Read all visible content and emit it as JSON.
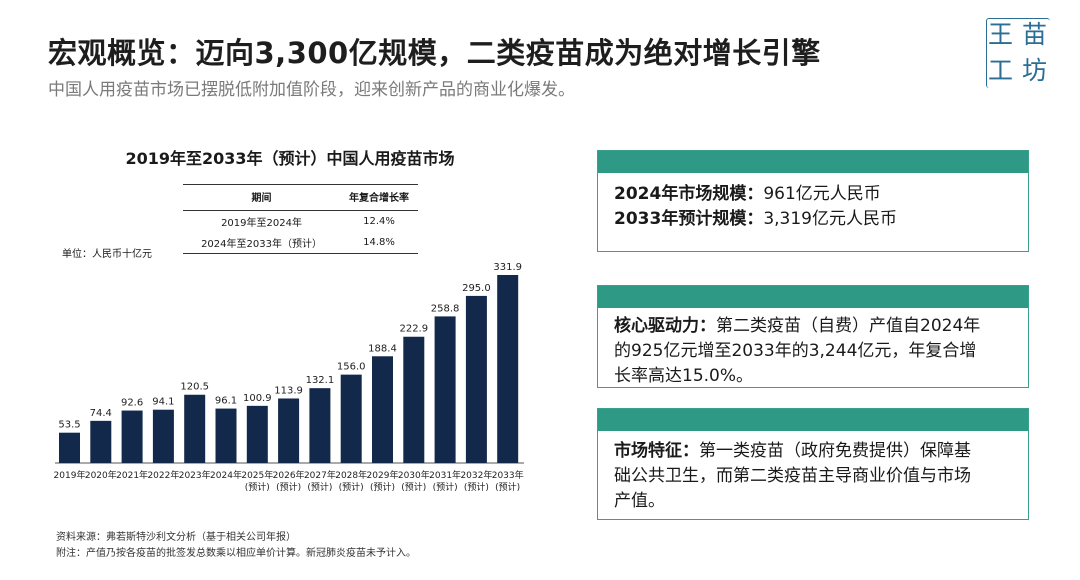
{
  "header": {
    "title": "宏观概览：迈向3,300亿规模，二类疫苗成为绝对增长引擎",
    "subtitle": "中国人用疫苗市场已摆脱低附加值阶段，迎来创新产品的商业化爆发。"
  },
  "logo": {
    "chars": [
      "王",
      "苗",
      "工",
      "坊"
    ]
  },
  "chart_data": {
    "type": "bar",
    "title": "2019年至2033年（预计）中国人用疫苗市场",
    "unit_label": "单位：人民币十亿元",
    "categories": [
      [
        "2019年"
      ],
      [
        "2020年"
      ],
      [
        "2021年"
      ],
      [
        "2022年"
      ],
      [
        "2023年"
      ],
      [
        "2024年"
      ],
      [
        "2025年",
        "(预计)"
      ],
      [
        "2026年",
        "(预计)"
      ],
      [
        "2027年",
        "(预计)"
      ],
      [
        "2028年",
        "(预计)"
      ],
      [
        "2029年",
        "(预计)"
      ],
      [
        "2030年",
        "(预计)"
      ],
      [
        "2031年",
        "(预计)"
      ],
      [
        "2032年",
        "(预计)"
      ],
      [
        "2033年",
        "(预计)"
      ]
    ],
    "values": [
      53.5,
      74.4,
      92.6,
      94.1,
      120.5,
      96.1,
      100.9,
      113.9,
      132.1,
      156.0,
      188.4,
      222.9,
      258.8,
      295.0,
      331.9
    ],
    "value_labels": [
      "53.5",
      "74.4",
      "92.6",
      "94.1",
      "120.5",
      "96.1",
      "100.9",
      "113.9",
      "132.1",
      "156.0",
      "188.4",
      "222.9",
      "258.8",
      "295.0",
      "331.9"
    ],
    "ylim": [
      0,
      331.9
    ],
    "bar_color": "#13294b",
    "cagr_table": {
      "headers": [
        "期间",
        "年复合增长率"
      ],
      "rows": [
        [
          "2019年至2024年",
          "12.4%"
        ],
        [
          "2024年至2033年（预计）",
          "14.8%"
        ]
      ]
    }
  },
  "source": {
    "line1": "资料来源：弗若斯特沙利文分析（基于相关公司年报）",
    "line2": "附注：产值乃按各疫苗的批签发总数乘以相应单价计算。新冠肺炎疫苗未予计入。"
  },
  "cards": {
    "accent": "#2e9a86",
    "c1": {
      "l1_label": "2024年市场规模：",
      "l1_value": "961亿元人民币",
      "l2_label": "2033年预计规模：",
      "l2_value": "3,319亿元人民币"
    },
    "c2": {
      "label": "核心驱动力：",
      "l1": "第二类疫苗（自费）产值自2024年",
      "l2": "的925亿元增至2033年的3,244亿元，年复合增",
      "l3": "长率高达15.0%。"
    },
    "c3": {
      "label": "市场特征：",
      "l1": "第一类疫苗（政府免费提供）保障基",
      "l2": "础公共卫生，而第二类疫苗主导商业价值与市场",
      "l3": "产值。"
    }
  }
}
